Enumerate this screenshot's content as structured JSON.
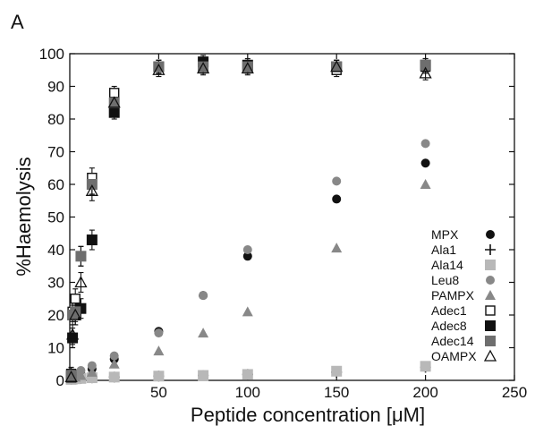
{
  "panel_label": "A",
  "chart_data": {
    "type": "scatter",
    "xlabel": "Peptide concentration [μM]",
    "ylabel": "%Haemolysis",
    "xlim": [
      0,
      250
    ],
    "ylim": [
      0,
      100
    ],
    "x_ticks": [
      50,
      100,
      150,
      200,
      250
    ],
    "y_ticks": [
      0,
      10,
      20,
      30,
      40,
      50,
      60,
      70,
      80,
      90,
      100
    ],
    "grid": false,
    "legend_position": "right",
    "series": [
      {
        "name": "MPX",
        "marker": "circle-filled",
        "color": "#111111",
        "x": [
          0.78,
          1.56,
          3.125,
          6.25,
          12.5,
          25,
          50,
          75,
          100,
          150,
          200
        ],
        "y": [
          0.5,
          0.8,
          1.2,
          2,
          3.5,
          6.5,
          15,
          26,
          38,
          55.5,
          66.5
        ]
      },
      {
        "name": "Ala1",
        "marker": "plus",
        "color": "#111111",
        "x": [
          0.78,
          1.56,
          3.125,
          6.25,
          12.5,
          25,
          50,
          75,
          100,
          150,
          200
        ],
        "y": [
          0.3,
          0.4,
          0.5,
          0.6,
          0.8,
          1,
          1.3,
          1.5,
          1.8,
          2.5,
          4
        ]
      },
      {
        "name": "Ala14",
        "marker": "square-filled",
        "color": "#b8b8b8",
        "x": [
          0.78,
          1.56,
          3.125,
          6.25,
          12.5,
          25,
          50,
          75,
          100,
          150,
          200
        ],
        "y": [
          0.3,
          0.4,
          0.5,
          0.6,
          0.8,
          1,
          1.3,
          1.5,
          1.8,
          2.8,
          4.3
        ]
      },
      {
        "name": "Leu8",
        "marker": "circle-filled",
        "color": "#888888",
        "x": [
          0.78,
          1.56,
          3.125,
          6.25,
          12.5,
          25,
          50,
          75,
          100,
          150,
          200
        ],
        "y": [
          1,
          1.5,
          2,
          3,
          4.5,
          7.5,
          14.5,
          26,
          40,
          61,
          72.5
        ]
      },
      {
        "name": "PAMPX",
        "marker": "triangle-filled",
        "color": "#888888",
        "x": [
          0.78,
          1.56,
          3.125,
          6.25,
          12.5,
          25,
          50,
          75,
          100,
          150,
          200
        ],
        "y": [
          0.5,
          0.8,
          1,
          1.5,
          2.5,
          5,
          9,
          14.5,
          21,
          40.5,
          60
        ]
      },
      {
        "name": "Adec1",
        "marker": "square-open",
        "color": "#111111",
        "x": [
          0.78,
          1.56,
          3.125,
          6.25,
          12.5,
          25,
          50,
          75,
          100,
          150,
          200
        ],
        "y": [
          2,
          21,
          25,
          38,
          62,
          88,
          96,
          96,
          96,
          95,
          96
        ]
      },
      {
        "name": "Adec8",
        "marker": "square-filled",
        "color": "#111111",
        "x": [
          0.78,
          1.56,
          3.125,
          6.25,
          12.5,
          25,
          50,
          75,
          100,
          150,
          200
        ],
        "y": [
          1,
          13,
          20,
          22,
          43,
          82,
          96,
          97.5,
          96.5,
          96,
          96.5
        ]
      },
      {
        "name": "Adec14",
        "marker": "square-filled",
        "color": "#6e6e6e",
        "x": [
          0.78,
          1.56,
          3.125,
          6.25,
          12.5,
          25,
          50,
          75,
          100,
          150,
          200
        ],
        "y": [
          1.5,
          20,
          21,
          38,
          60,
          85,
          96,
          96,
          96,
          96,
          96.5
        ]
      },
      {
        "name": "OAMPX",
        "marker": "triangle-open",
        "color": "#111111",
        "x": [
          0.78,
          1.56,
          3.125,
          6.25,
          12.5,
          25,
          50,
          75,
          100,
          150,
          200
        ],
        "y": [
          1,
          14,
          20,
          30,
          58,
          85,
          95,
          95.5,
          95.5,
          96,
          94
        ]
      }
    ]
  }
}
